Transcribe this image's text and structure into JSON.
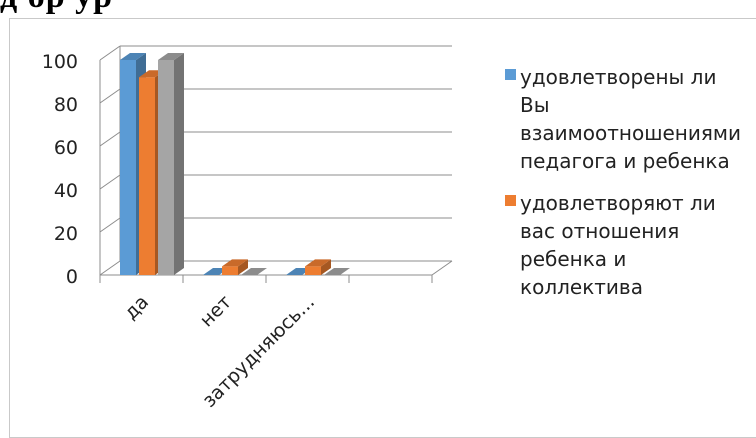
{
  "page": {
    "heading_fragment": "д     ор     ур"
  },
  "colors": {
    "series_1": "#5b9bd5",
    "series_2": "#ed7d31",
    "series_3": "#a5a5a5",
    "gridline": "#8c8c8c"
  },
  "chart_data": {
    "type": "bar",
    "style": "3d-clustered-column",
    "categories": [
      "да",
      "нет",
      "затрудняюсь..."
    ],
    "series": [
      {
        "name": "удовлетворены ли Вы взаимоотношениями педагога и ребенка",
        "values": [
          100,
          0,
          0
        ]
      },
      {
        "name": "удовлетворяют ли вас отношения ребенка и коллектива",
        "values": [
          92,
          4,
          4
        ]
      },
      {
        "values": [
          100,
          0,
          0
        ]
      }
    ],
    "yticks": [
      "0",
      "20",
      "40",
      "60",
      "80",
      "100"
    ],
    "ylim": [
      0,
      100
    ],
    "grid": true,
    "legend_position": "right"
  },
  "legend": {
    "items": [
      {
        "label": "удовлетворены ли Вы взаимоотношениями педагога и ребенка"
      },
      {
        "label": "удовлетворяют ли вас отношения ребенка и коллектива"
      }
    ]
  }
}
